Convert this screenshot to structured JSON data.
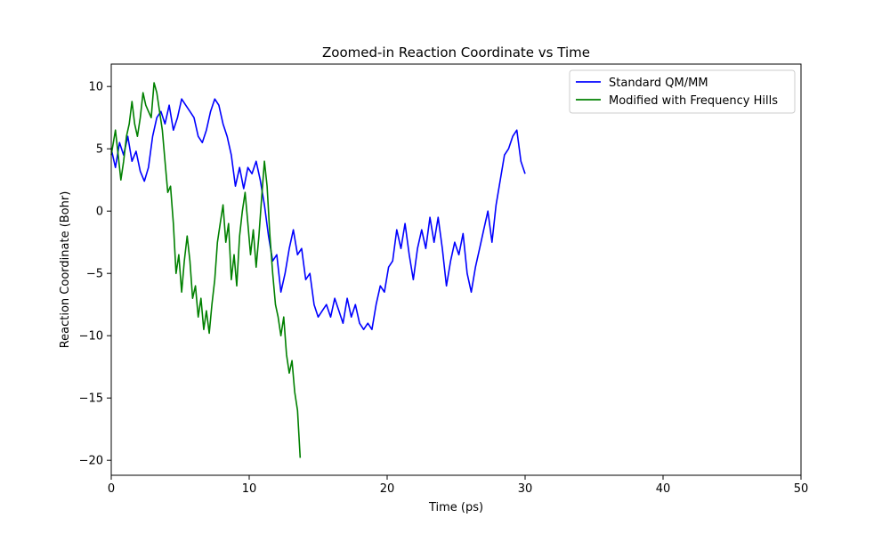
{
  "chart_data": {
    "type": "line",
    "title": "Zoomed-in Reaction Coordinate vs Time",
    "xlabel": "Time (ps)",
    "ylabel": "Reaction Coordinate (Bohr)",
    "xlim": [
      0,
      50
    ],
    "ylim": [
      -21.2,
      11.8
    ],
    "xticks": [
      0,
      10,
      20,
      30,
      40,
      50
    ],
    "yticks": [
      10,
      5,
      0,
      -5,
      -10,
      -15,
      -20
    ],
    "grid": false,
    "legend_position": "top-right",
    "series": [
      {
        "name": "Standard QM/MM",
        "color": "#0000ff",
        "points": [
          [
            0,
            5.0
          ],
          [
            0.3,
            3.5
          ],
          [
            0.6,
            5.5
          ],
          [
            0.9,
            4.5
          ],
          [
            1.2,
            6.0
          ],
          [
            1.5,
            4.0
          ],
          [
            1.8,
            4.8
          ],
          [
            2.1,
            3.2
          ],
          [
            2.4,
            2.4
          ],
          [
            2.7,
            3.5
          ],
          [
            3.0,
            6.0
          ],
          [
            3.3,
            7.5
          ],
          [
            3.6,
            8.0
          ],
          [
            3.9,
            7.0
          ],
          [
            4.2,
            8.5
          ],
          [
            4.5,
            6.5
          ],
          [
            4.8,
            7.5
          ],
          [
            5.1,
            9.0
          ],
          [
            5.4,
            8.5
          ],
          [
            5.7,
            8.0
          ],
          [
            6.0,
            7.5
          ],
          [
            6.3,
            6.0
          ],
          [
            6.6,
            5.5
          ],
          [
            6.9,
            6.5
          ],
          [
            7.2,
            8.0
          ],
          [
            7.5,
            9.0
          ],
          [
            7.8,
            8.5
          ],
          [
            8.1,
            7.0
          ],
          [
            8.4,
            6.0
          ],
          [
            8.7,
            4.5
          ],
          [
            9.0,
            2.0
          ],
          [
            9.3,
            3.5
          ],
          [
            9.6,
            1.8
          ],
          [
            9.9,
            3.5
          ],
          [
            10.2,
            3.0
          ],
          [
            10.5,
            4.0
          ],
          [
            10.8,
            2.5
          ],
          [
            11.1,
            0.5
          ],
          [
            11.4,
            -2.0
          ],
          [
            11.7,
            -4.0
          ],
          [
            12.0,
            -3.5
          ],
          [
            12.3,
            -6.5
          ],
          [
            12.6,
            -5.0
          ],
          [
            12.9,
            -3.0
          ],
          [
            13.2,
            -1.5
          ],
          [
            13.5,
            -3.5
          ],
          [
            13.8,
            -3.0
          ],
          [
            14.1,
            -5.5
          ],
          [
            14.4,
            -5.0
          ],
          [
            14.7,
            -7.5
          ],
          [
            15.0,
            -8.5
          ],
          [
            15.3,
            -8.0
          ],
          [
            15.6,
            -7.5
          ],
          [
            15.9,
            -8.5
          ],
          [
            16.2,
            -7.0
          ],
          [
            16.5,
            -8.0
          ],
          [
            16.8,
            -9.0
          ],
          [
            17.1,
            -7.0
          ],
          [
            17.4,
            -8.5
          ],
          [
            17.7,
            -7.5
          ],
          [
            18.0,
            -9.0
          ],
          [
            18.3,
            -9.5
          ],
          [
            18.6,
            -9.0
          ],
          [
            18.9,
            -9.5
          ],
          [
            19.2,
            -7.5
          ],
          [
            19.5,
            -6.0
          ],
          [
            19.8,
            -6.5
          ],
          [
            20.1,
            -4.5
          ],
          [
            20.4,
            -4.0
          ],
          [
            20.7,
            -1.5
          ],
          [
            21.0,
            -3.0
          ],
          [
            21.3,
            -1.0
          ],
          [
            21.6,
            -3.5
          ],
          [
            21.9,
            -5.5
          ],
          [
            22.2,
            -3.0
          ],
          [
            22.5,
            -1.5
          ],
          [
            22.8,
            -3.0
          ],
          [
            23.1,
            -0.5
          ],
          [
            23.4,
            -2.5
          ],
          [
            23.7,
            -0.5
          ],
          [
            24.0,
            -3.0
          ],
          [
            24.3,
            -6.0
          ],
          [
            24.6,
            -4.0
          ],
          [
            24.9,
            -2.5
          ],
          [
            25.2,
            -3.5
          ],
          [
            25.5,
            -1.8
          ],
          [
            25.8,
            -5.0
          ],
          [
            26.1,
            -6.5
          ],
          [
            26.4,
            -4.5
          ],
          [
            26.7,
            -3.0
          ],
          [
            27.0,
            -1.5
          ],
          [
            27.3,
            0.0
          ],
          [
            27.6,
            -2.5
          ],
          [
            27.9,
            0.5
          ],
          [
            28.2,
            2.5
          ],
          [
            28.5,
            4.5
          ],
          [
            28.8,
            5.0
          ],
          [
            29.1,
            6.0
          ],
          [
            29.4,
            6.5
          ],
          [
            29.7,
            4.0
          ],
          [
            30.0,
            3.0
          ]
        ]
      },
      {
        "name": "Modified with Frequency Hills",
        "color": "#008000",
        "points": [
          [
            0,
            4.5
          ],
          [
            0.3,
            6.5
          ],
          [
            0.5,
            4.5
          ],
          [
            0.7,
            2.5
          ],
          [
            0.9,
            4.0
          ],
          [
            1.1,
            6.0
          ],
          [
            1.3,
            7.0
          ],
          [
            1.5,
            8.8
          ],
          [
            1.7,
            7.0
          ],
          [
            1.9,
            6.0
          ],
          [
            2.1,
            7.5
          ],
          [
            2.3,
            9.5
          ],
          [
            2.5,
            8.5
          ],
          [
            2.7,
            8.0
          ],
          [
            2.9,
            7.5
          ],
          [
            3.1,
            10.3
          ],
          [
            3.3,
            9.5
          ],
          [
            3.5,
            8.0
          ],
          [
            3.7,
            6.5
          ],
          [
            3.9,
            4.0
          ],
          [
            4.1,
            1.5
          ],
          [
            4.3,
            2.0
          ],
          [
            4.5,
            -1.0
          ],
          [
            4.7,
            -5.0
          ],
          [
            4.9,
            -3.5
          ],
          [
            5.1,
            -6.5
          ],
          [
            5.3,
            -4.0
          ],
          [
            5.5,
            -2.0
          ],
          [
            5.7,
            -4.0
          ],
          [
            5.9,
            -7.0
          ],
          [
            6.1,
            -6.0
          ],
          [
            6.3,
            -8.5
          ],
          [
            6.5,
            -7.0
          ],
          [
            6.7,
            -9.5
          ],
          [
            6.9,
            -8.0
          ],
          [
            7.1,
            -9.8
          ],
          [
            7.3,
            -7.5
          ],
          [
            7.5,
            -5.5
          ],
          [
            7.7,
            -2.5
          ],
          [
            7.9,
            -1.0
          ],
          [
            8.1,
            0.5
          ],
          [
            8.3,
            -2.5
          ],
          [
            8.5,
            -1.0
          ],
          [
            8.7,
            -5.5
          ],
          [
            8.9,
            -3.5
          ],
          [
            9.1,
            -6.0
          ],
          [
            9.3,
            -2.0
          ],
          [
            9.5,
            0.0
          ],
          [
            9.7,
            1.5
          ],
          [
            9.9,
            -1.0
          ],
          [
            10.1,
            -3.5
          ],
          [
            10.3,
            -1.5
          ],
          [
            10.5,
            -4.5
          ],
          [
            10.7,
            -2.0
          ],
          [
            10.9,
            1.0
          ],
          [
            11.1,
            4.0
          ],
          [
            11.3,
            2.0
          ],
          [
            11.5,
            -2.0
          ],
          [
            11.7,
            -5.0
          ],
          [
            11.9,
            -7.5
          ],
          [
            12.1,
            -8.5
          ],
          [
            12.3,
            -10.0
          ],
          [
            12.5,
            -8.5
          ],
          [
            12.7,
            -11.5
          ],
          [
            12.9,
            -13.0
          ],
          [
            13.1,
            -12.0
          ],
          [
            13.3,
            -14.5
          ],
          [
            13.5,
            -16.0
          ],
          [
            13.7,
            -19.8
          ]
        ]
      }
    ]
  }
}
